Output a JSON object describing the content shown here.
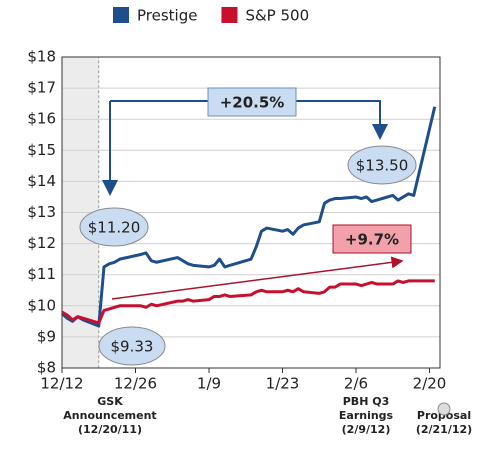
{
  "chart_data": {
    "type": "line",
    "x": [
      "12/12",
      "12/13",
      "12/14",
      "12/15",
      "12/16",
      "12/19",
      "12/20",
      "12/21",
      "12/22",
      "12/23",
      "12/27",
      "12/28",
      "12/29",
      "12/30",
      "1/3",
      "1/4",
      "1/5",
      "1/6",
      "1/9",
      "1/10",
      "1/11",
      "1/12",
      "1/13",
      "1/17",
      "1/18",
      "1/19",
      "1/20",
      "1/23",
      "1/24",
      "1/25",
      "1/26",
      "1/27",
      "1/30",
      "1/31",
      "2/1",
      "2/2",
      "2/3",
      "2/6",
      "2/7",
      "2/8",
      "2/9",
      "2/10",
      "2/13",
      "2/14",
      "2/15",
      "2/16",
      "2/17",
      "2/21"
    ],
    "series": [
      {
        "name": "Prestige",
        "color": "#1f4e8c",
        "values": [
          9.75,
          9.6,
          9.5,
          9.65,
          9.55,
          9.35,
          11.25,
          11.35,
          11.4,
          11.5,
          11.65,
          11.7,
          11.45,
          11.4,
          11.55,
          11.45,
          11.35,
          11.3,
          11.25,
          11.3,
          11.5,
          11.25,
          11.3,
          11.5,
          11.9,
          12.4,
          12.5,
          12.4,
          12.45,
          12.3,
          12.5,
          12.6,
          12.7,
          13.3,
          13.4,
          13.45,
          13.45,
          13.5,
          13.45,
          13.5,
          13.35,
          13.4,
          13.55,
          13.4,
          13.5,
          13.6,
          13.55,
          16.4
        ]
      },
      {
        "name": "S&P 500",
        "color": "#c8102e",
        "values": [
          9.8,
          9.7,
          9.55,
          9.65,
          9.6,
          9.45,
          9.85,
          9.9,
          9.95,
          10.0,
          10.0,
          9.95,
          10.05,
          10.0,
          10.15,
          10.15,
          10.2,
          10.15,
          10.2,
          10.3,
          10.3,
          10.35,
          10.3,
          10.35,
          10.45,
          10.5,
          10.45,
          10.45,
          10.5,
          10.45,
          10.55,
          10.45,
          10.4,
          10.45,
          10.6,
          10.6,
          10.7,
          10.7,
          10.65,
          10.7,
          10.75,
          10.7,
          10.7,
          10.8,
          10.75,
          10.8,
          10.8,
          10.8
        ]
      }
    ],
    "xlim": [
      "12/12",
      "2/22"
    ],
    "xticks": [
      "12/12",
      "12/26",
      "1/9",
      "1/23",
      "2/6",
      "2/20"
    ],
    "ylim": [
      8,
      18
    ],
    "yticks": [
      {
        "value": 8,
        "label": "$8"
      },
      {
        "value": 9,
        "label": "$9"
      },
      {
        "value": 10,
        "label": "$10"
      },
      {
        "value": 11,
        "label": "$11"
      },
      {
        "value": 12,
        "label": "$12"
      },
      {
        "value": 13,
        "label": "$13"
      },
      {
        "value": 14,
        "label": "$14"
      },
      {
        "value": 15,
        "label": "$15"
      },
      {
        "value": 16,
        "label": "$16"
      },
      {
        "value": 17,
        "label": "$17"
      },
      {
        "value": 18,
        "label": "$18"
      }
    ],
    "grid": true,
    "legend": "top",
    "shaded_range": [
      "12/12",
      "12/19"
    ],
    "callouts": [
      "$11.20",
      "$13.50",
      "$9.33"
    ],
    "changes": [
      "+20.5%",
      "+9.7%"
    ],
    "annotations": [
      [
        "GSK",
        "Announcement",
        "(12/20/11)"
      ],
      [
        "PBH Q3",
        "Earnings",
        "(2/9/12)"
      ],
      [
        "Proposal",
        "(2/21/12)"
      ]
    ]
  }
}
